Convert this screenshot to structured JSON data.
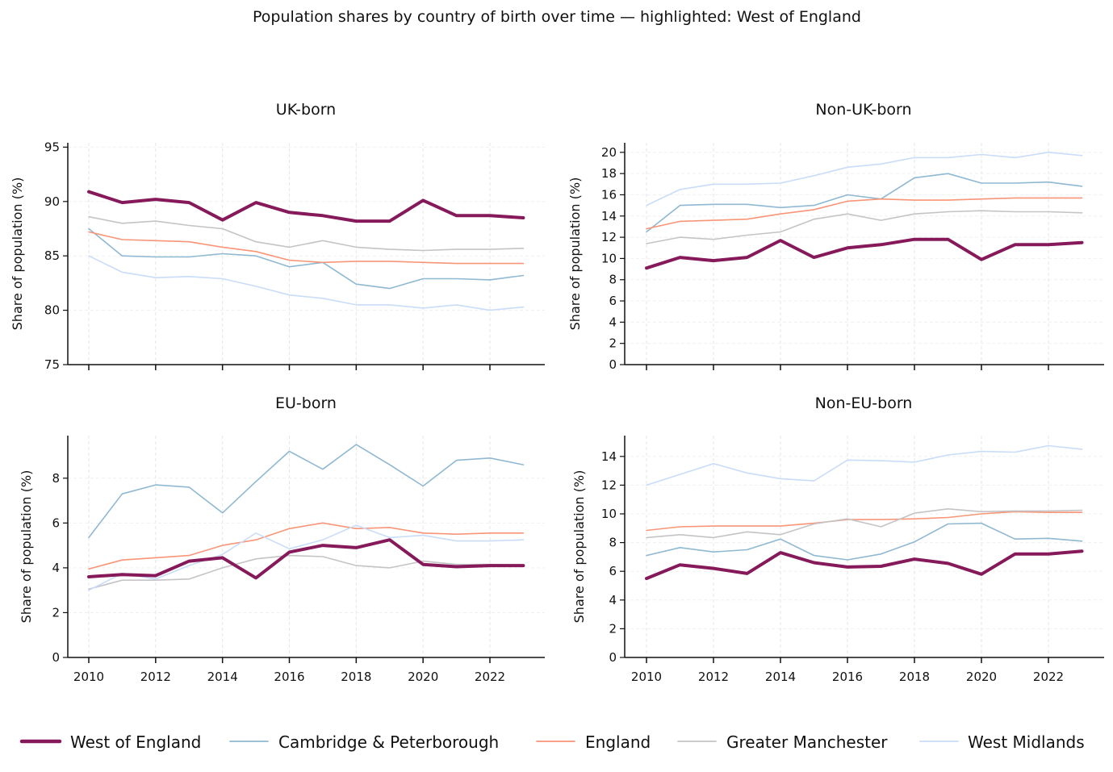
{
  "chart_data": {
    "type": "line",
    "title": "Population shares by country of birth over time — highlighted: West of England",
    "x": [
      2010,
      2011,
      2012,
      2013,
      2014,
      2015,
      2016,
      2017,
      2018,
      2019,
      2020,
      2021,
      2022,
      2023
    ],
    "x_ticks": [
      "2010",
      "2012",
      "2014",
      "2016",
      "2018",
      "2020",
      "2022"
    ],
    "legend_position": "bottom",
    "grid": true,
    "series_styles": [
      {
        "name": "West of England",
        "color": "#86195a",
        "highlight": true
      },
      {
        "name": "Cambridge & Peterborough",
        "color": "#8fb8d1",
        "highlight": false
      },
      {
        "name": "England",
        "color": "#f99577",
        "highlight": false
      },
      {
        "name": "Greater Manchester",
        "color": "#c5c3c6",
        "highlight": false
      },
      {
        "name": "West Midlands",
        "color": "#c9dcf8",
        "highlight": false
      }
    ],
    "panels": [
      {
        "title": "UK-born",
        "ylabel": "Share of population (%)",
        "ylim": [
          75,
          95.4
        ],
        "y_ticks": [
          "75",
          "80",
          "85",
          "90",
          "95"
        ],
        "x_tick_labels_shown": false,
        "series": [
          {
            "name": "West of England",
            "values": [
              90.9,
              89.9,
              90.2,
              89.9,
              88.3,
              89.9,
              89.0,
              88.7,
              88.2,
              88.2,
              90.1,
              88.7,
              88.7,
              88.5
            ]
          },
          {
            "name": "Cambridge & Peterborough",
            "values": [
              87.5,
              85.0,
              84.9,
              84.9,
              85.2,
              85.0,
              84.0,
              84.4,
              82.4,
              82.0,
              82.9,
              82.9,
              82.8,
              83.2
            ]
          },
          {
            "name": "England",
            "values": [
              87.2,
              86.5,
              86.4,
              86.3,
              85.8,
              85.4,
              84.6,
              84.4,
              84.5,
              84.5,
              84.4,
              84.3,
              84.3,
              84.3
            ]
          },
          {
            "name": "Greater Manchester",
            "values": [
              88.6,
              88.0,
              88.2,
              87.8,
              87.5,
              86.3,
              85.8,
              86.4,
              85.8,
              85.6,
              85.5,
              85.6,
              85.6,
              85.7
            ]
          },
          {
            "name": "West Midlands",
            "values": [
              85.0,
              83.5,
              83.0,
              83.1,
              82.9,
              82.2,
              81.4,
              81.1,
              80.5,
              80.5,
              80.2,
              80.5,
              80.0,
              80.3
            ]
          }
        ]
      },
      {
        "title": "Non-UK-born",
        "ylabel": "Share of population (%)",
        "ylim": [
          0,
          20.9
        ],
        "y_ticks": [
          "0",
          "2",
          "4",
          "6",
          "8",
          "10",
          "12",
          "14",
          "16",
          "18",
          "20"
        ],
        "x_tick_labels_shown": false,
        "series": [
          {
            "name": "West of England",
            "values": [
              9.1,
              10.1,
              9.8,
              10.1,
              11.7,
              10.1,
              11.0,
              11.3,
              11.8,
              11.8,
              9.9,
              11.3,
              11.3,
              11.5
            ]
          },
          {
            "name": "Cambridge & Peterborough",
            "values": [
              12.5,
              15.0,
              15.1,
              15.1,
              14.8,
              15.0,
              16.0,
              15.6,
              17.6,
              18.0,
              17.1,
              17.1,
              17.2,
              16.8
            ]
          },
          {
            "name": "England",
            "values": [
              12.8,
              13.5,
              13.6,
              13.7,
              14.2,
              14.6,
              15.4,
              15.6,
              15.5,
              15.5,
              15.6,
              15.7,
              15.7,
              15.7
            ]
          },
          {
            "name": "Greater Manchester",
            "values": [
              11.4,
              12.0,
              11.8,
              12.2,
              12.5,
              13.7,
              14.2,
              13.6,
              14.2,
              14.4,
              14.5,
              14.4,
              14.4,
              14.3
            ]
          },
          {
            "name": "West Midlands",
            "values": [
              15.0,
              16.5,
              17.0,
              17.0,
              17.1,
              17.8,
              18.6,
              18.9,
              19.5,
              19.5,
              19.8,
              19.5,
              20.0,
              19.7
            ]
          }
        ]
      },
      {
        "title": "EU-born",
        "ylabel": "Share of population (%)",
        "ylim": [
          0,
          9.9
        ],
        "y_ticks": [
          "0",
          "2",
          "4",
          "6",
          "8"
        ],
        "x_tick_labels_shown": true,
        "series": [
          {
            "name": "West of England",
            "values": [
              3.6,
              3.7,
              3.65,
              4.3,
              4.45,
              3.55,
              4.7,
              5.0,
              4.9,
              5.25,
              4.15,
              4.05,
              4.1,
              4.1
            ]
          },
          {
            "name": "Cambridge & Peterborough",
            "values": [
              5.35,
              7.3,
              7.7,
              7.6,
              6.45,
              7.85,
              9.2,
              8.4,
              9.5,
              8.6,
              7.65,
              8.8,
              8.9,
              8.6
            ]
          },
          {
            "name": "England",
            "values": [
              3.95,
              4.35,
              4.45,
              4.55,
              5.0,
              5.25,
              5.75,
              6.0,
              5.75,
              5.8,
              5.55,
              5.5,
              5.55,
              5.55
            ]
          },
          {
            "name": "Greater Manchester",
            "values": [
              3.05,
              3.45,
              3.45,
              3.5,
              4.0,
              4.4,
              4.55,
              4.5,
              4.1,
              4.0,
              4.3,
              4.15,
              4.15,
              4.1
            ]
          },
          {
            "name": "West Midlands",
            "values": [
              3.0,
              3.75,
              3.5,
              4.1,
              4.6,
              5.55,
              4.85,
              5.25,
              5.9,
              5.35,
              5.45,
              5.2,
              5.2,
              5.25
            ]
          }
        ]
      },
      {
        "title": "Non-EU-born",
        "ylabel": "Share of population (%)",
        "ylim": [
          0,
          15.45
        ],
        "y_ticks": [
          "0",
          "2",
          "4",
          "6",
          "8",
          "10",
          "12",
          "14"
        ],
        "x_tick_labels_shown": true,
        "series": [
          {
            "name": "West of England",
            "values": [
              5.5,
              6.45,
              6.2,
              5.85,
              7.3,
              6.6,
              6.3,
              6.35,
              6.85,
              6.55,
              5.8,
              7.2,
              7.2,
              7.4
            ]
          },
          {
            "name": "Cambridge & Peterborough",
            "values": [
              7.1,
              7.65,
              7.35,
              7.5,
              8.25,
              7.1,
              6.8,
              7.2,
              8.05,
              9.3,
              9.35,
              8.25,
              8.3,
              8.1
            ]
          },
          {
            "name": "England",
            "values": [
              8.85,
              9.1,
              9.15,
              9.15,
              9.15,
              9.35,
              9.6,
              9.6,
              9.65,
              9.75,
              10.0,
              10.15,
              10.1,
              10.1
            ]
          },
          {
            "name": "Greater Manchester",
            "values": [
              8.35,
              8.55,
              8.35,
              8.75,
              8.55,
              9.3,
              9.65,
              9.1,
              10.05,
              10.35,
              10.15,
              10.2,
              10.2,
              10.25
            ]
          },
          {
            "name": "West Midlands",
            "values": [
              12.0,
              12.75,
              13.5,
              12.85,
              12.45,
              12.3,
              13.75,
              13.7,
              13.6,
              14.1,
              14.35,
              14.3,
              14.75,
              14.5
            ]
          }
        ]
      }
    ]
  }
}
